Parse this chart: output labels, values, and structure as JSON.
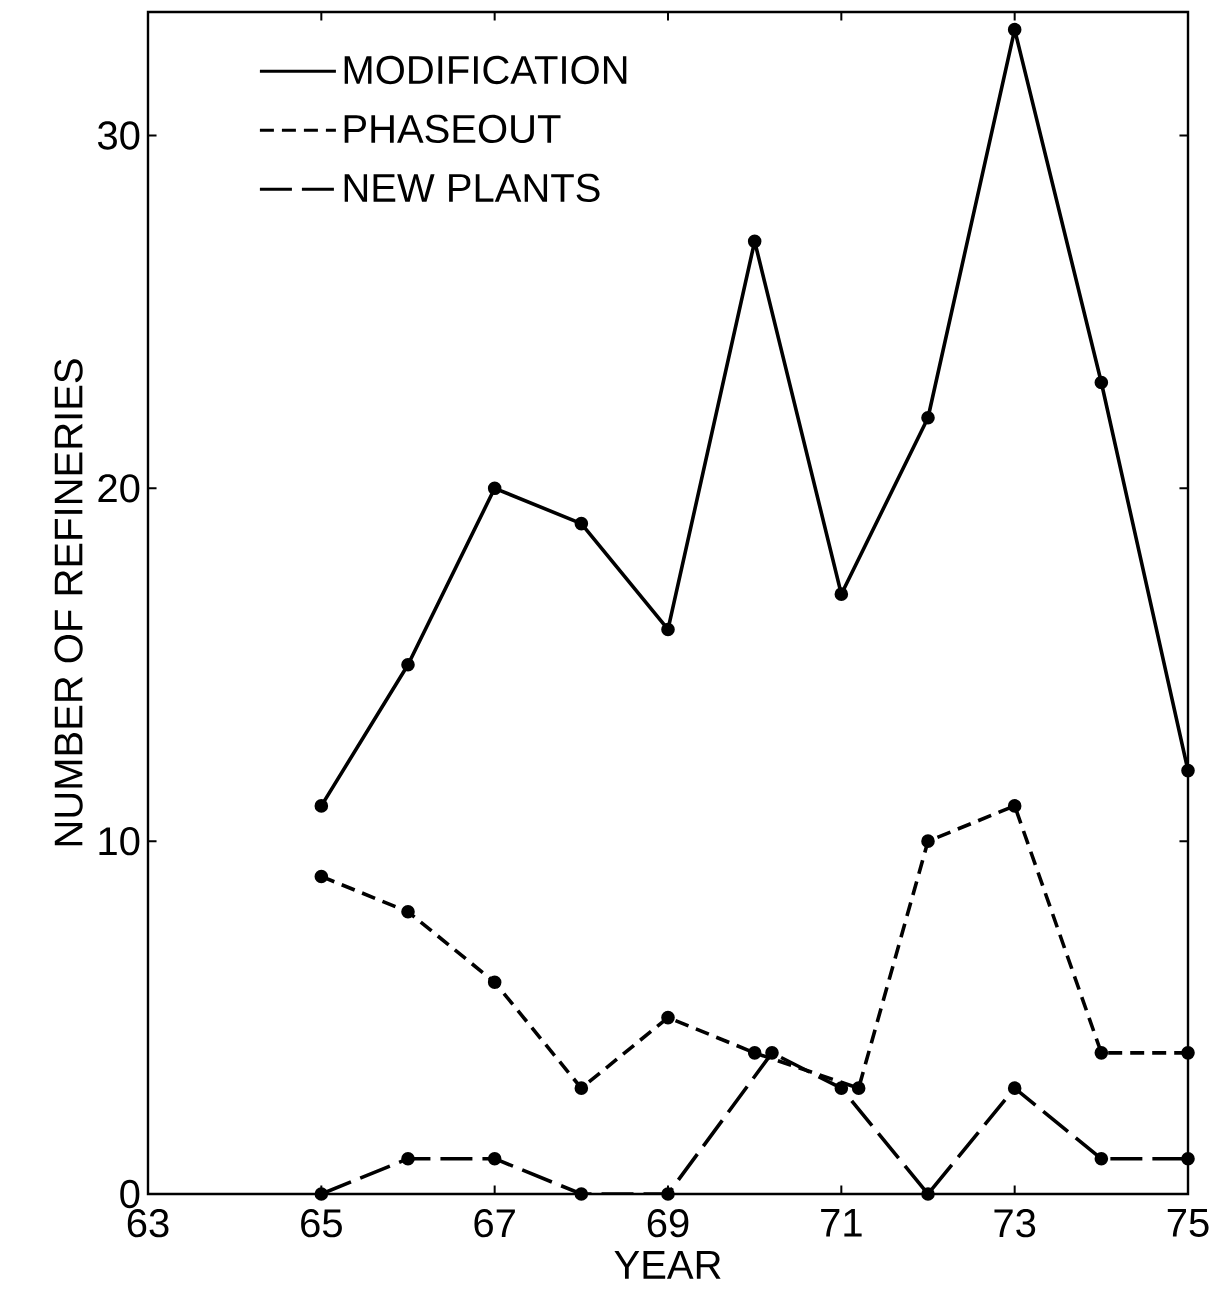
{
  "chart_data": {
    "type": "line",
    "xlabel": "YEAR",
    "ylabel": "NUMBER OF REFINERIES",
    "x": [
      65,
      66,
      67,
      68,
      69,
      70,
      71,
      72,
      73,
      74,
      75
    ],
    "series": [
      {
        "name": "MODIFICATION",
        "color": "#000000",
        "line_style": "solid",
        "values": [
          11,
          15,
          20,
          19,
          16,
          27,
          17,
          22,
          33,
          23,
          12
        ]
      },
      {
        "name": "PHASEOUT",
        "color": "#000000",
        "line_style": "dashed",
        "x": [
          65,
          66,
          67,
          68,
          69,
          70,
          71.2,
          72,
          73,
          74,
          75
        ],
        "values": [
          9,
          8,
          6,
          3,
          5,
          4,
          3,
          10,
          11,
          4,
          4
        ]
      },
      {
        "name": "NEW PLANTS",
        "color": "#000000",
        "line_style": "long dashed",
        "x": [
          65,
          66,
          67,
          68,
          69,
          70.2,
          71,
          72,
          73,
          74,
          75
        ],
        "values": [
          0,
          1,
          1,
          0,
          0,
          4,
          3,
          0,
          3,
          1,
          1
        ]
      }
    ],
    "xlim": [
      63,
      75
    ],
    "ylim": [
      0,
      33.5
    ],
    "xticks": [
      63,
      65,
      67,
      69,
      71,
      73,
      75
    ],
    "yticks": [
      0,
      10,
      20,
      30
    ],
    "marker": "circle",
    "legend": "top left",
    "grid": false
  }
}
